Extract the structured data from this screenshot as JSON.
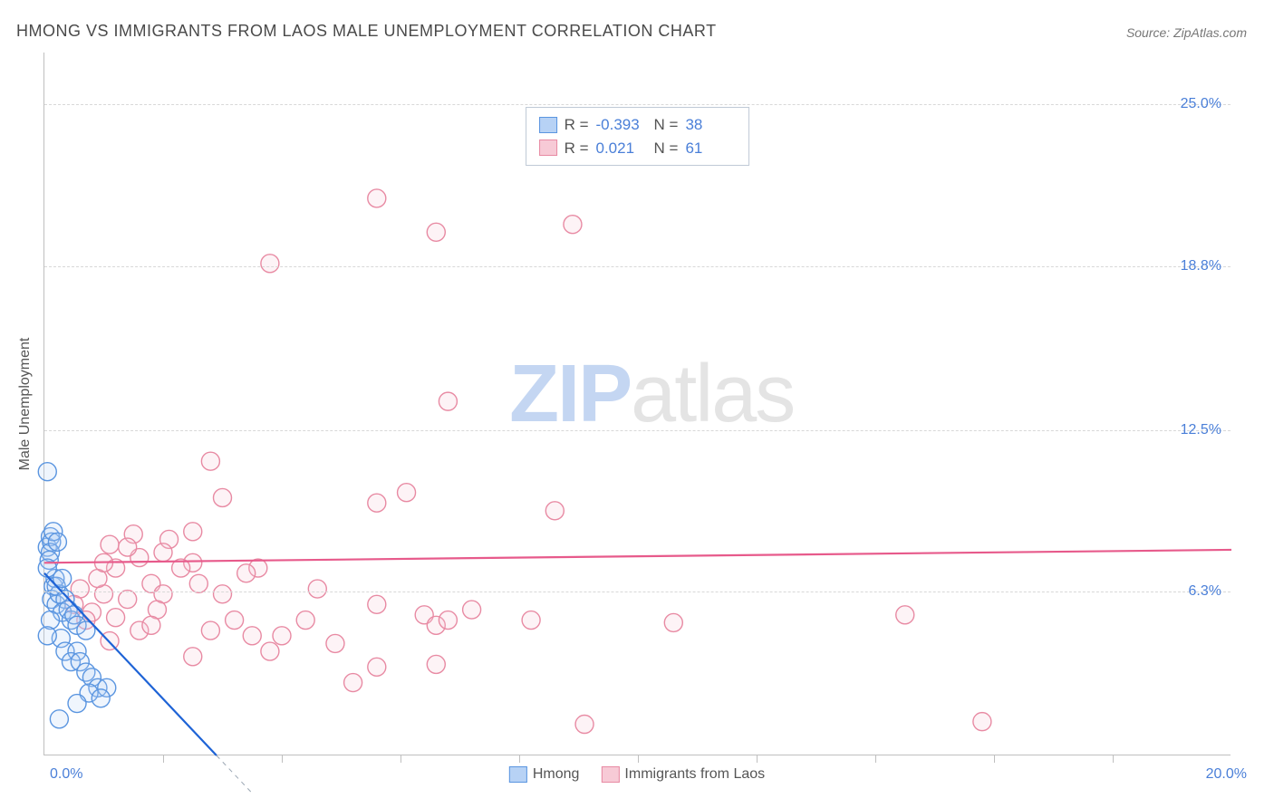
{
  "title": "HMONG VS IMMIGRANTS FROM LAOS MALE UNEMPLOYMENT CORRELATION CHART",
  "source": "Source: ZipAtlas.com",
  "ylabel": "Male Unemployment",
  "watermark": {
    "zip": "ZIP",
    "atlas": "atlas"
  },
  "chart": {
    "type": "scatter",
    "background_color": "#ffffff",
    "grid_color": "#d8d8d8",
    "axis_color": "#bfbfbf",
    "tick_text_color": "#4a7fd8",
    "xlim": [
      0.0,
      20.0
    ],
    "ylim": [
      0.0,
      27.0
    ],
    "y_ticks": [
      {
        "value": 25.0,
        "label": "25.0%"
      },
      {
        "value": 18.8,
        "label": "18.8%"
      },
      {
        "value": 12.5,
        "label": "12.5%"
      },
      {
        "value": 6.3,
        "label": "6.3%"
      }
    ],
    "x_tick_left": "0.0%",
    "x_tick_right": "20.0%",
    "x_minor_ticks": [
      2.0,
      4.0,
      6.0,
      8.0,
      10.0,
      12.0,
      14.0,
      16.0,
      18.0
    ],
    "marker_radius": 10,
    "marker_fill_opacity": 0.22,
    "marker_stroke_width": 1.4,
    "trendline_width": 2.2
  },
  "series": [
    {
      "name": "Hmong",
      "color_fill": "#b7d2f5",
      "color_stroke": "#5a95e0",
      "trend_color": "#1e63d6",
      "stats": {
        "R_label": "R =",
        "R": "-0.393",
        "N_label": "N =",
        "N": "38"
      },
      "trendline": {
        "x1": 0.0,
        "y1": 7.0,
        "x2": 2.9,
        "y2": 0.0,
        "dash_extend_x": 3.5
      },
      "points": [
        [
          0.05,
          10.9
        ],
        [
          0.05,
          8.0
        ],
        [
          0.1,
          8.4
        ],
        [
          0.12,
          8.2
        ],
        [
          0.1,
          7.8
        ],
        [
          0.08,
          7.5
        ],
        [
          0.15,
          6.5
        ],
        [
          0.18,
          6.8
        ],
        [
          0.12,
          6.0
        ],
        [
          0.2,
          5.8
        ],
        [
          0.25,
          6.2
        ],
        [
          0.2,
          6.5
        ],
        [
          0.35,
          6.0
        ],
        [
          0.3,
          5.5
        ],
        [
          0.4,
          5.6
        ],
        [
          0.45,
          5.2
        ],
        [
          0.5,
          5.4
        ],
        [
          0.55,
          5.0
        ],
        [
          0.28,
          4.5
        ],
        [
          0.35,
          4.0
        ],
        [
          0.55,
          4.0
        ],
        [
          0.45,
          3.6
        ],
        [
          0.6,
          3.6
        ],
        [
          0.7,
          3.2
        ],
        [
          0.8,
          3.0
        ],
        [
          0.9,
          2.6
        ],
        [
          1.05,
          2.6
        ],
        [
          0.75,
          2.4
        ],
        [
          0.95,
          2.2
        ],
        [
          0.55,
          2.0
        ],
        [
          0.25,
          1.4
        ],
        [
          0.7,
          4.8
        ],
        [
          0.15,
          8.6
        ],
        [
          0.22,
          8.2
        ],
        [
          0.05,
          7.2
        ],
        [
          0.3,
          6.8
        ],
        [
          0.1,
          5.2
        ],
        [
          0.05,
          4.6
        ]
      ]
    },
    {
      "name": "Immigrants from Laos",
      "color_fill": "#f7cad6",
      "color_stroke": "#e88aa3",
      "trend_color": "#e75a8b",
      "stats": {
        "R_label": "R =",
        "R": "0.021",
        "N_label": "N =",
        "N": "61"
      },
      "trendline": {
        "x1": 0.0,
        "y1": 7.4,
        "x2": 20.0,
        "y2": 7.9
      },
      "points": [
        [
          5.6,
          21.4
        ],
        [
          6.6,
          20.1
        ],
        [
          8.9,
          20.4
        ],
        [
          3.8,
          18.9
        ],
        [
          6.8,
          13.6
        ],
        [
          2.8,
          11.3
        ],
        [
          3.0,
          9.9
        ],
        [
          6.1,
          10.1
        ],
        [
          5.6,
          9.7
        ],
        [
          8.6,
          9.4
        ],
        [
          1.1,
          8.1
        ],
        [
          1.5,
          8.5
        ],
        [
          2.1,
          8.3
        ],
        [
          2.5,
          7.4
        ],
        [
          3.6,
          7.2
        ],
        [
          1.0,
          6.2
        ],
        [
          1.4,
          6.0
        ],
        [
          1.8,
          6.6
        ],
        [
          2.0,
          6.2
        ],
        [
          2.6,
          6.6
        ],
        [
          3.4,
          7.0
        ],
        [
          4.6,
          6.4
        ],
        [
          5.6,
          5.8
        ],
        [
          0.8,
          5.5
        ],
        [
          1.2,
          5.3
        ],
        [
          1.6,
          4.8
        ],
        [
          1.9,
          5.6
        ],
        [
          2.8,
          4.8
        ],
        [
          3.5,
          4.6
        ],
        [
          4.0,
          4.6
        ],
        [
          4.9,
          4.3
        ],
        [
          6.4,
          5.4
        ],
        [
          6.6,
          5.0
        ],
        [
          6.8,
          5.2
        ],
        [
          8.2,
          5.2
        ],
        [
          10.6,
          5.1
        ],
        [
          14.5,
          5.4
        ],
        [
          2.5,
          3.8
        ],
        [
          5.6,
          3.4
        ],
        [
          6.6,
          3.5
        ],
        [
          5.2,
          2.8
        ],
        [
          9.1,
          1.2
        ],
        [
          15.8,
          1.3
        ],
        [
          2.5,
          8.6
        ],
        [
          2.0,
          7.8
        ],
        [
          3.8,
          4.0
        ],
        [
          1.2,
          7.2
        ],
        [
          1.6,
          7.6
        ],
        [
          0.6,
          6.4
        ],
        [
          0.9,
          6.8
        ],
        [
          1.0,
          7.4
        ],
        [
          2.3,
          7.2
        ],
        [
          3.0,
          6.2
        ],
        [
          3.2,
          5.2
        ],
        [
          4.4,
          5.2
        ],
        [
          7.2,
          5.6
        ],
        [
          1.4,
          8.0
        ],
        [
          1.8,
          5.0
        ],
        [
          0.5,
          5.8
        ],
        [
          0.7,
          5.2
        ],
        [
          1.1,
          4.4
        ]
      ]
    }
  ],
  "bottom_legend": [
    {
      "label": "Hmong"
    },
    {
      "label": "Immigrants from Laos"
    }
  ]
}
